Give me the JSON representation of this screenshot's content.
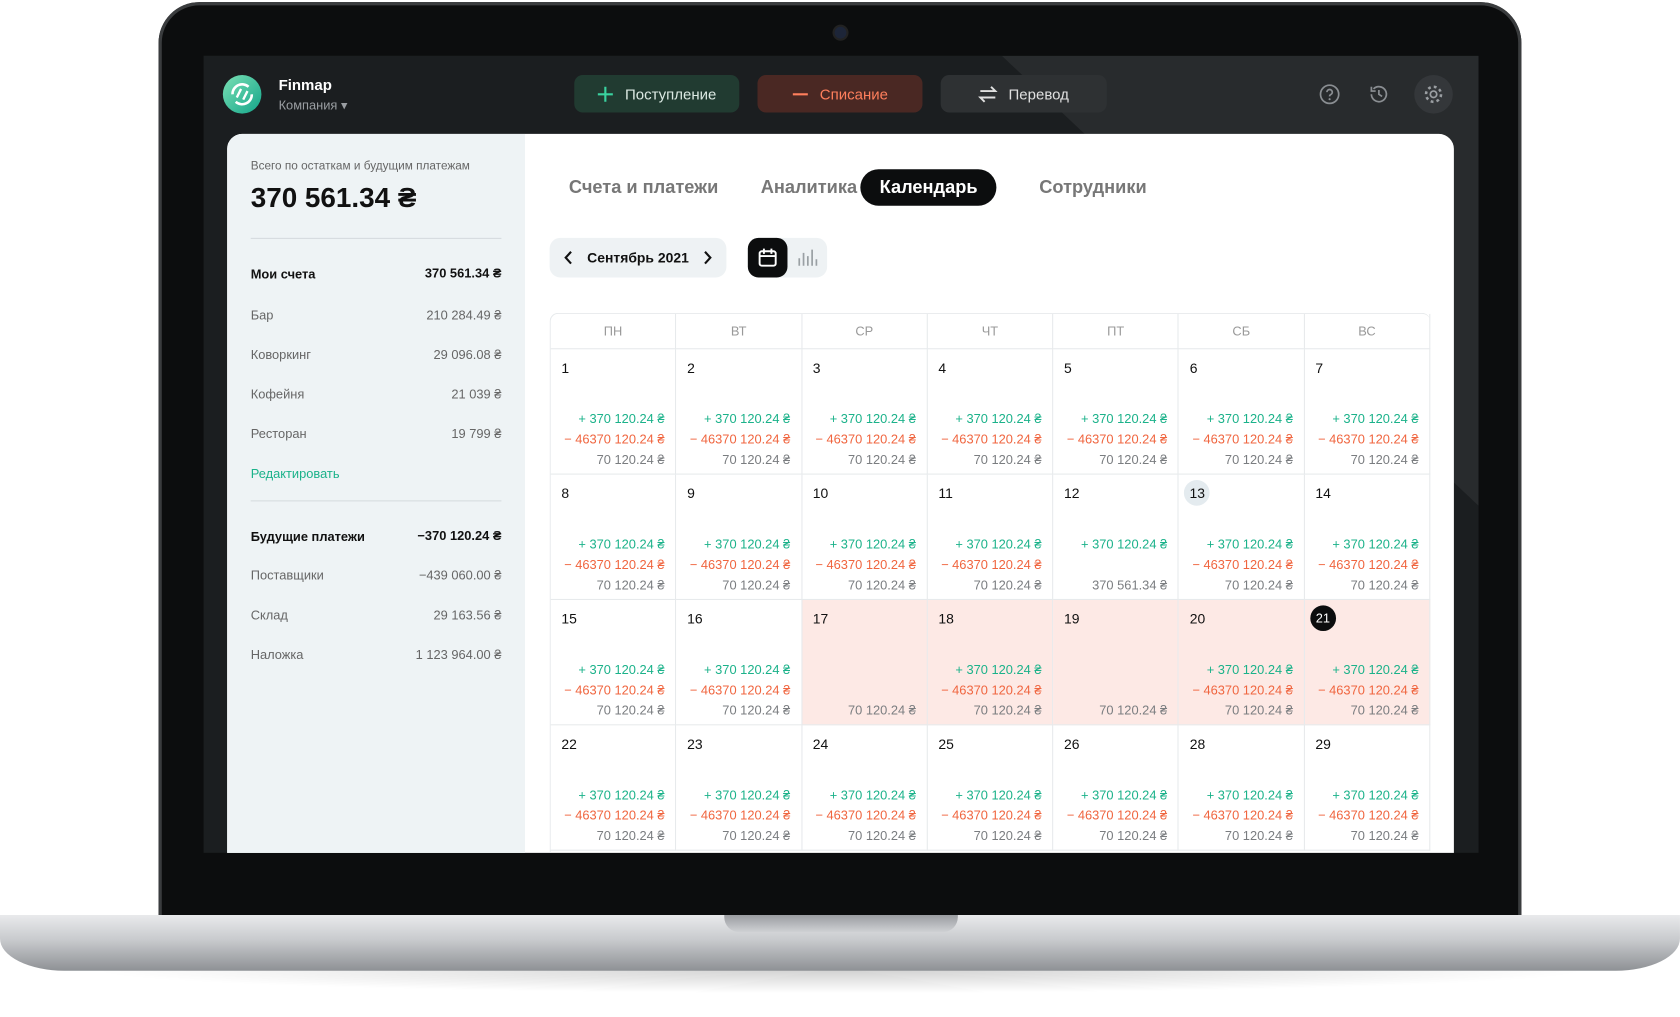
{
  "header": {
    "brand": "Finmap",
    "company": "Компания",
    "actions": [
      "Поступление",
      "Списание",
      "Перевод"
    ]
  },
  "sidebar": {
    "total_label": "Всего по остаткам и будущим платежам",
    "total": "370 561.34 ₴",
    "accounts": {
      "title": "Мои счета",
      "total": "370 561.34 ₴",
      "items": [
        {
          "name": "Бар",
          "amount": "210 284.49 ₴"
        },
        {
          "name": "Коворкинг",
          "amount": "29 096.08 ₴"
        },
        {
          "name": "Кофейня",
          "amount": "21 039 ₴"
        },
        {
          "name": "Ресторан",
          "amount": "19 799 ₴"
        }
      ]
    },
    "edit": "Редактировать",
    "future": {
      "title": "Будущие платежи",
      "total": "−370 120.24 ₴",
      "items": [
        {
          "name": "Поставщики",
          "amount": "−439 060.00 ₴"
        },
        {
          "name": "Склад",
          "amount": "29 163.56 ₴"
        },
        {
          "name": "Наложка",
          "amount": "1 123 964.00 ₴"
        }
      ]
    }
  },
  "tabs": {
    "items": [
      "Счета и платежи",
      "Аналитика",
      "Календарь",
      "Сотрудники"
    ],
    "active": 2
  },
  "calendar": {
    "month": "Сентябрь 2021",
    "weekdays": [
      "ПН",
      "ВТ",
      "СР",
      "ЧТ",
      "ПТ",
      "СБ",
      "ВС"
    ],
    "weeks": [
      [
        {
          "day": "1",
          "income": "+ 370 120.24 ₴",
          "expense": "− 46370 120.24 ₴",
          "balance": "70 120.24 ₴"
        },
        {
          "day": "2",
          "income": "+ 370 120.24 ₴",
          "expense": "− 46370 120.24 ₴",
          "balance": "70 120.24 ₴"
        },
        {
          "day": "3",
          "income": "+ 370 120.24 ₴",
          "expense": "− 46370 120.24 ₴",
          "balance": "70 120.24 ₴"
        },
        {
          "day": "4",
          "income": "+ 370 120.24 ₴",
          "expense": "− 46370 120.24 ₴",
          "balance": "70 120.24 ₴"
        },
        {
          "day": "5",
          "income": "+ 370 120.24 ₴",
          "expense": "− 46370 120.24 ₴",
          "balance": "70 120.24 ₴"
        },
        {
          "day": "6",
          "income": "+ 370 120.24 ₴",
          "expense": "− 46370 120.24 ₴",
          "balance": "70 120.24 ₴"
        },
        {
          "day": "7",
          "income": "+ 370 120.24 ₴",
          "expense": "− 46370 120.24 ₴",
          "balance": "70 120.24 ₴"
        }
      ],
      [
        {
          "day": "8",
          "income": "+ 370 120.24 ₴",
          "expense": "− 46370 120.24 ₴",
          "balance": "70 120.24 ₴"
        },
        {
          "day": "9",
          "income": "+ 370 120.24 ₴",
          "expense": "− 46370 120.24 ₴",
          "balance": "70 120.24 ₴"
        },
        {
          "day": "10",
          "income": "+ 370 120.24 ₴",
          "expense": "− 46370 120.24 ₴",
          "balance": "70 120.24 ₴"
        },
        {
          "day": "11",
          "income": "+ 370 120.24 ₴",
          "expense": "− 46370 120.24 ₴",
          "balance": "70 120.24 ₴"
        },
        {
          "day": "12",
          "income": "+ 370 120.24 ₴",
          "balance": "370 561.34 ₴"
        },
        {
          "day": "13",
          "income": "+ 370 120.24 ₴",
          "expense": "− 46370 120.24 ₴",
          "balance": "70 120.24 ₴",
          "marked": true
        },
        {
          "day": "14",
          "income": "+ 370 120.24 ₴",
          "expense": "− 46370 120.24 ₴",
          "balance": "70 120.24 ₴"
        }
      ],
      [
        {
          "day": "15",
          "income": "+ 370 120.24 ₴",
          "expense": "− 46370 120.24 ₴",
          "balance": "70 120.24 ₴"
        },
        {
          "day": "16",
          "income": "+ 370 120.24 ₴",
          "expense": "− 46370 120.24 ₴",
          "balance": "70 120.24 ₴"
        },
        {
          "day": "17",
          "balance": "70 120.24 ₴",
          "highlighted": true
        },
        {
          "day": "18",
          "income": "+ 370 120.24 ₴",
          "expense": "− 46370 120.24 ₴",
          "balance": "70 120.24 ₴",
          "highlighted": true
        },
        {
          "day": "19",
          "balance": "70 120.24 ₴",
          "highlighted": true
        },
        {
          "day": "20",
          "income": "+ 370 120.24 ₴",
          "expense": "− 46370 120.24 ₴",
          "balance": "70 120.24 ₴",
          "highlighted": true
        },
        {
          "day": "21",
          "income": "+ 370 120.24 ₴",
          "expense": "− 46370 120.24 ₴",
          "balance": "70 120.24 ₴",
          "highlighted": true,
          "today": true
        }
      ],
      [
        {
          "day": "22",
          "income": "+ 370 120.24 ₴",
          "expense": "− 46370 120.24 ₴",
          "balance": "70 120.24 ₴"
        },
        {
          "day": "23",
          "income": "+ 370 120.24 ₴",
          "expense": "− 46370 120.24 ₴",
          "balance": "70 120.24 ₴"
        },
        {
          "day": "24",
          "income": "+ 370 120.24 ₴",
          "expense": "− 46370 120.24 ₴",
          "balance": "70 120.24 ₴"
        },
        {
          "day": "25",
          "income": "+ 370 120.24 ₴",
          "expense": "− 46370 120.24 ₴",
          "balance": "70 120.24 ₴"
        },
        {
          "day": "26",
          "income": "+ 370 120.24 ₴",
          "expense": "− 46370 120.24 ₴",
          "balance": "70 120.24 ₴"
        },
        {
          "day": "28",
          "income": "+ 370 120.24 ₴",
          "expense": "− 46370 120.24 ₴",
          "balance": "70 120.24 ₴"
        },
        {
          "day": "29",
          "income": "+ 370 120.24 ₴",
          "expense": "− 46370 120.24 ₴",
          "balance": "70 120.24 ₴"
        }
      ]
    ]
  }
}
